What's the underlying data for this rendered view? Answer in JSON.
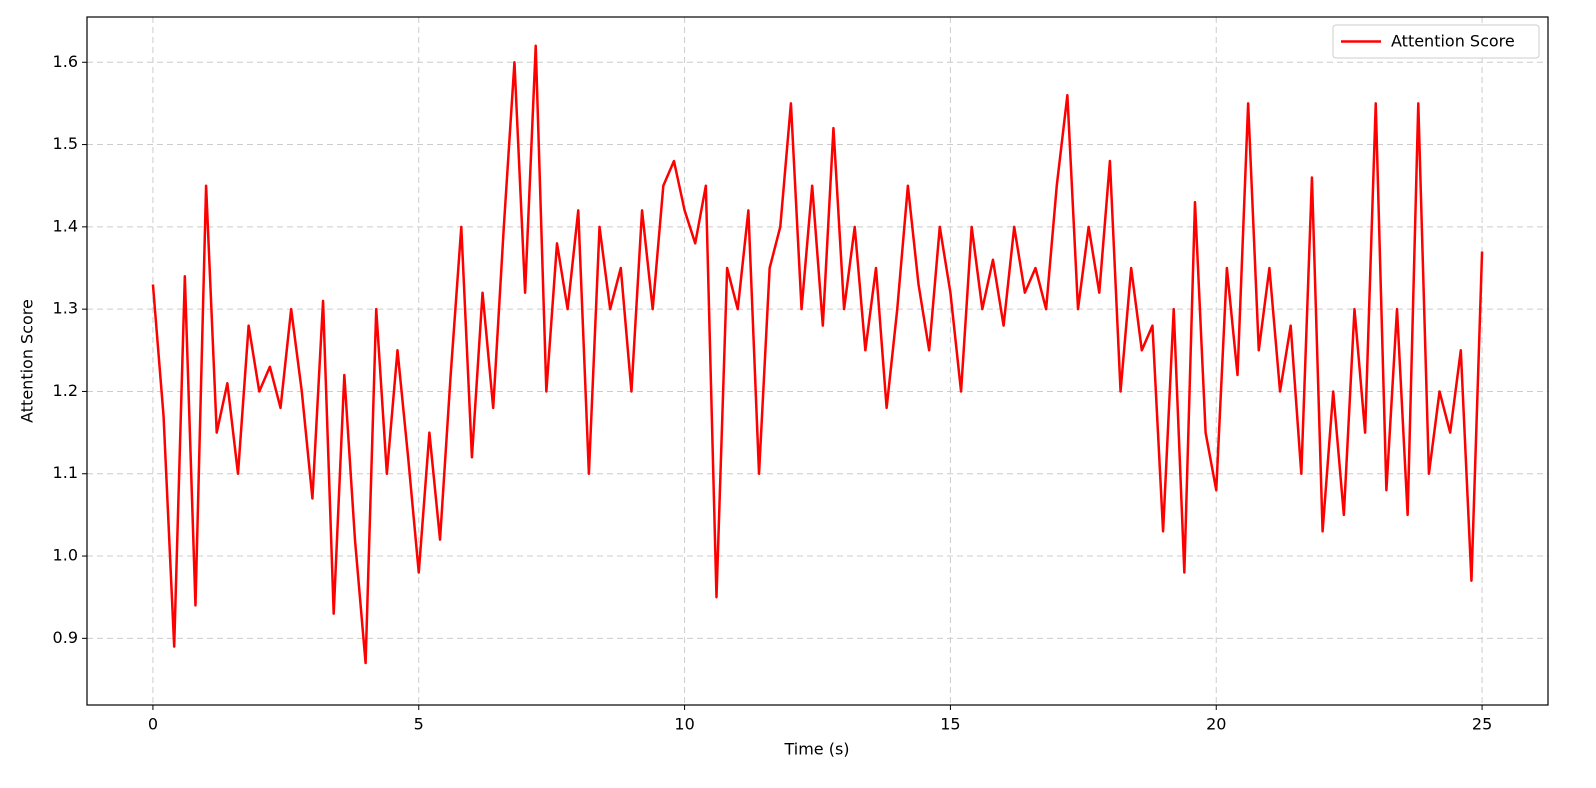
{
  "chart_data": {
    "type": "line",
    "xlabel": "Time (s)",
    "ylabel": "Attention Score",
    "x": [
      0,
      0.2,
      0.4,
      0.6,
      0.8,
      1,
      1.2,
      1.4,
      1.6,
      1.8,
      2,
      2.2,
      2.4,
      2.6,
      2.8,
      3,
      3.2,
      3.4,
      3.6,
      3.8,
      4,
      4.2,
      4.4,
      4.6,
      4.8,
      5,
      5.2,
      5.4,
      5.6,
      5.8,
      6,
      6.2,
      6.4,
      6.6,
      6.8,
      7,
      7.2,
      7.4,
      7.6,
      7.8,
      8,
      8.2,
      8.4,
      8.6,
      8.8,
      9,
      9.2,
      9.4,
      9.6,
      9.8,
      10,
      10.2,
      10.4,
      10.6,
      10.8,
      11,
      11.2,
      11.4,
      11.6,
      11.8,
      12,
      12.2,
      12.4,
      12.6,
      12.8,
      13,
      13.2,
      13.4,
      13.6,
      13.8,
      14,
      14.2,
      14.4,
      14.6,
      14.8,
      15,
      15.2,
      15.4,
      15.6,
      15.8,
      16,
      16.2,
      16.4,
      16.6,
      16.8,
      17,
      17.2,
      17.4,
      17.6,
      17.8,
      18,
      18.2,
      18.4,
      18.6,
      18.8,
      19,
      19.2,
      19.4,
      19.6,
      19.8,
      20,
      20.2,
      20.4,
      20.6,
      20.8,
      21,
      21.2,
      21.4,
      21.6,
      21.8,
      22,
      22.2,
      22.4,
      22.6,
      22.8,
      23,
      23.2,
      23.4,
      23.6,
      23.8,
      24,
      24.2,
      24.4,
      24.6,
      24.8,
      25
    ],
    "series": [
      {
        "name": "Attention Score",
        "color": "#ff0000",
        "values": [
          1.33,
          1.17,
          0.89,
          1.34,
          0.94,
          1.45,
          1.15,
          1.21,
          1.1,
          1.28,
          1.2,
          1.23,
          1.18,
          1.3,
          1.2,
          1.07,
          1.31,
          0.93,
          1.22,
          1.02,
          0.87,
          1.3,
          1.1,
          1.25,
          1.12,
          0.98,
          1.15,
          1.02,
          1.22,
          1.4,
          1.12,
          1.32,
          1.18,
          1.4,
          1.6,
          1.32,
          1.62,
          1.2,
          1.38,
          1.3,
          1.42,
          1.1,
          1.4,
          1.3,
          1.35,
          1.2,
          1.42,
          1.3,
          1.45,
          1.48,
          1.42,
          1.38,
          1.45,
          0.95,
          1.35,
          1.3,
          1.42,
          1.1,
          1.35,
          1.4,
          1.55,
          1.3,
          1.45,
          1.28,
          1.52,
          1.3,
          1.4,
          1.25,
          1.35,
          1.18,
          1.3,
          1.45,
          1.33,
          1.25,
          1.4,
          1.32,
          1.2,
          1.4,
          1.3,
          1.36,
          1.28,
          1.4,
          1.32,
          1.35,
          1.3,
          1.45,
          1.56,
          1.3,
          1.4,
          1.32,
          1.48,
          1.2,
          1.35,
          1.25,
          1.28,
          1.03,
          1.3,
          0.98,
          1.43,
          1.15,
          1.08,
          1.35,
          1.22,
          1.55,
          1.25,
          1.35,
          1.2,
          1.28,
          1.1,
          1.46,
          1.03,
          1.2,
          1.05,
          1.3,
          1.15,
          1.55,
          1.08,
          1.3,
          1.05,
          1.55,
          1.1,
          1.2,
          1.15,
          1.25,
          0.97,
          1.37
        ]
      }
    ],
    "xlim": [
      -1.24,
      26.24
    ],
    "xticks": [
      0,
      5,
      10,
      15,
      20,
      25
    ],
    "ylim": [
      0.819,
      1.655
    ],
    "yticks": [
      0.9,
      {
        "value": 1,
        "label": "1.0"
      },
      1.1,
      1.2,
      1.3,
      1.4,
      1.5,
      1.6
    ],
    "grid": true,
    "legend": "upper right"
  }
}
